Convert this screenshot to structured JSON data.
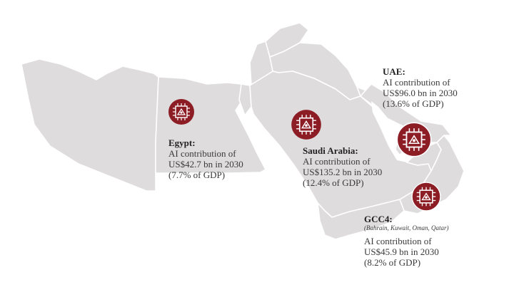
{
  "colors": {
    "land": "#dedcdc",
    "marker": "#8c1d24",
    "marker_ring": "#ffffff"
  },
  "regions": {
    "egypt": {
      "name": "Egypt:",
      "lines": [
        "AI contribution of",
        "US$42.7 bn in 2030",
        "(7.7% of GDP)"
      ]
    },
    "saudi": {
      "name": "Saudi Arabia:",
      "lines": [
        "AI contribution of",
        "US$135.2 bn in 2030",
        "(12.4% of GDP)"
      ]
    },
    "uae": {
      "name": "UAE:",
      "lines": [
        "AI contribution of",
        "US$96.0 bn in 2030",
        "(13.6% of GDP)"
      ]
    },
    "gcc4": {
      "name": "GCC4:",
      "subtitle": "(Bahrain, Kuwait, Oman, Qatar)",
      "lines": [
        "AI contribution of",
        "US$45.9 bn in 2030",
        "(8.2% of GDP)"
      ]
    }
  },
  "icon": "ai-chip-icon"
}
